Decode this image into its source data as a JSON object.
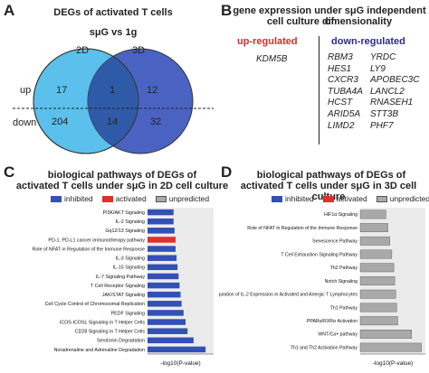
{
  "panel_a": {
    "letter": "A",
    "title": "DEGs of activated T cells",
    "subtitle": "sμG vs 1g",
    "label_2d": "2D",
    "label_3d": "3D",
    "row_up": "up",
    "row_down": "down",
    "counts": {
      "up_left": "17",
      "up_mid": "1",
      "up_right": "12",
      "down_left": "204",
      "down_mid": "14",
      "down_right": "32"
    },
    "colors": {
      "left": "#5bc0eb",
      "right": "#4a63c2",
      "overlap": "#2f5aa8"
    }
  },
  "panel_b": {
    "letter": "B",
    "title_line1": "gene expression under sμG independent of",
    "title_line2": "cell culture dimensionality",
    "up_header": "up-regulated",
    "down_header": "down-regulated",
    "up_genes": [
      "KDM5B"
    ],
    "down_genes_col1": [
      "RBM3",
      "HES1",
      "CXCR3",
      "TUBA4A",
      "HCST",
      "ARID5A",
      "LIMD2"
    ],
    "down_genes_col2": [
      "YRDC",
      "LY9",
      "APOBEC3C",
      "LANCL2",
      "RNASEH1",
      "STT3B",
      "PHF7"
    ],
    "colors": {
      "up": "#d92b2b",
      "down": "#2c2c8c"
    }
  },
  "panel_c": {
    "letter": "C",
    "title_line1": "biological pathways of DEGs of",
    "title_line2": "activated T cells under sμG in 2D cell culture",
    "legend": [
      "inhibited",
      "activated",
      "unpredicted"
    ],
    "xlabel": "-log10(P-value)"
  },
  "panel_d": {
    "letter": "D",
    "title_line1": "biological pathways of DEGs of",
    "title_line2": "activated T cells under sμG in 3D cell culture",
    "legend": [
      "inhibited",
      "activated",
      "unpredicted"
    ],
    "xlabel": "-log10(P-value)"
  },
  "legend_colors": {
    "inhibited": "#3350b5",
    "activated": "#e0302a",
    "unpredicted": "#a9a9a9"
  },
  "chart_data": [
    {
      "type": "bar",
      "orientation": "horizontal",
      "categories": [
        "PI3K/AKT Signaling",
        "IL-2 Signaling",
        "Gq12/13 Signaling",
        "PD-1, PD-L1 cancer immunotherapy pathway",
        "Role of NFAT in Regulation of the Immune Response",
        "IL-3 Signaling",
        "IL-15 Signaling",
        "IL-7 Signaling Pathway",
        "T Cell Receptor Signaling",
        "JAK/STAT Signaling",
        "Cell Cycle Control of Chromosomal Replication",
        "PEDF Signaling",
        "ICOS-ICOSL Signaling in T Helper Cells",
        "CD28 Signaling in T Helper Cells",
        "Serotonin Degradation",
        "Noradrenaline and Adrenaline Degradation"
      ],
      "values": [
        1.3,
        1.3,
        1.35,
        1.4,
        1.4,
        1.45,
        1.5,
        1.55,
        1.6,
        1.65,
        1.7,
        1.8,
        1.9,
        2.0,
        2.3,
        2.9
      ],
      "status": [
        "inhibited",
        "inhibited",
        "inhibited",
        "activated",
        "inhibited",
        "inhibited",
        "inhibited",
        "inhibited",
        "inhibited",
        "inhibited",
        "inhibited",
        "inhibited",
        "inhibited",
        "inhibited",
        "inhibited",
        "inhibited"
      ],
      "xlabel": "-log10(P-value)",
      "xlim": [
        0,
        3.3
      ]
    },
    {
      "type": "bar",
      "orientation": "horizontal",
      "categories": [
        "HIF1α Signaling",
        "Role of NFAT in Regulation of the Immune Response",
        "Senescence Pathway",
        "T Cell Exhaustion Signaling Pathway",
        "Th2 Pathway",
        "Notch Signaling",
        "Regulation of IL-2 Expression in Activated and Anergic T Lymphocytes",
        "Th1 Pathway",
        "PPARα/RXRα Activation",
        "WNT/Ca+ pathway",
        "Th1 and Th2 Activation Pathway"
      ],
      "values": [
        1.3,
        1.4,
        1.5,
        1.6,
        1.7,
        1.75,
        1.8,
        1.85,
        1.9,
        2.6,
        3.1
      ],
      "status": [
        "unpredicted",
        "unpredicted",
        "unpredicted",
        "unpredicted",
        "unpredicted",
        "unpredicted",
        "unpredicted",
        "unpredicted",
        "unpredicted",
        "unpredicted",
        "unpredicted"
      ],
      "xlabel": "-log10(P-value)",
      "xlim": [
        0,
        3.3
      ]
    }
  ]
}
